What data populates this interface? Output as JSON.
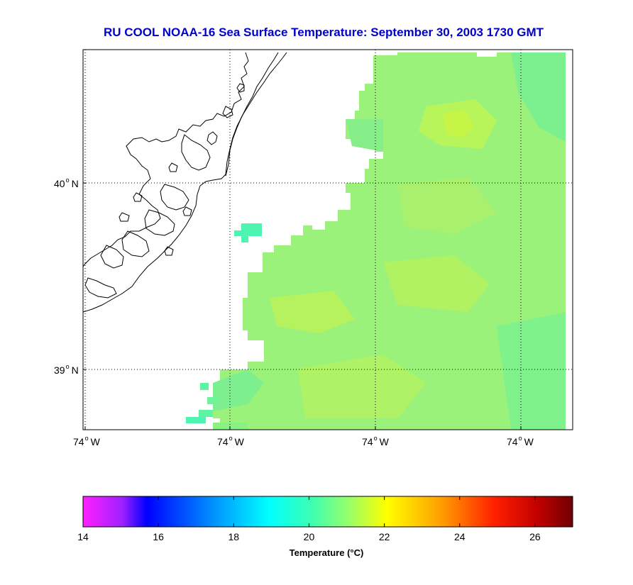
{
  "title": "RU COOL  NOAA-16  Sea Surface Temperature:  September 30, 2003 1730 GMT",
  "map": {
    "lat_ticks": [
      {
        "label": "40",
        "suffix": "N"
      },
      {
        "label": "39",
        "suffix": "N"
      }
    ],
    "lon_ticks": [
      {
        "label": "74",
        "suffix": "W"
      },
      {
        "label": "74",
        "suffix": "W"
      },
      {
        "label": "74",
        "suffix": "W"
      },
      {
        "label": "74",
        "suffix": "W"
      }
    ],
    "grid": true,
    "land_color": "#ffffff",
    "coastline_color": "#000000"
  },
  "colorbar": {
    "title": "Temperature (°C)",
    "min": 14,
    "max": 27,
    "tick_values": [
      14,
      16,
      18,
      20,
      22,
      24,
      26
    ],
    "tick_labels": [
      "14",
      "16",
      "18",
      "20",
      "22",
      "24",
      "26"
    ],
    "colors": [
      "#ff00ff",
      "#0000ff",
      "#00a0ff",
      "#00ffff",
      "#80ff80",
      "#ffff00",
      "#ff8000",
      "#ff0000",
      "#800000"
    ]
  },
  "sst_field": {
    "dominant_range": [
      19.5,
      22
    ],
    "offshore_color": "#9bf27a",
    "warm_patch_color": "#c8f540",
    "cool_patch_color": "#4ef5b0"
  }
}
